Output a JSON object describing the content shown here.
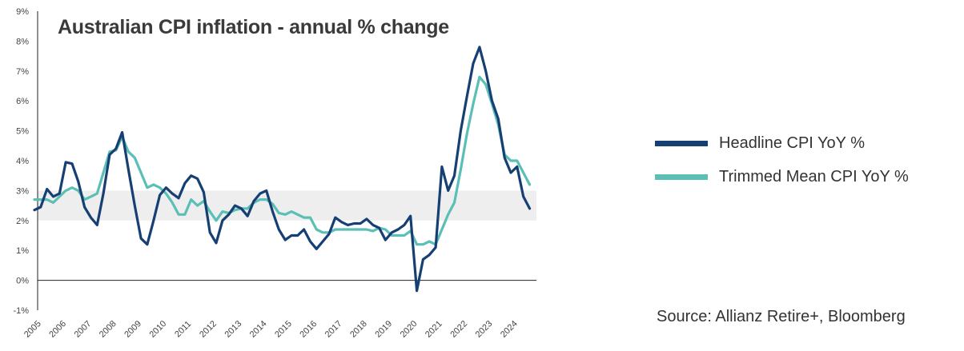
{
  "title": "Australian CPI inflation - annual % change",
  "source": "Source: Allianz Retire+, Bloomberg",
  "colors": {
    "headline": "#163f73",
    "trimmed": "#5bbfb6",
    "band": "#eeeeee",
    "axis": "#222222"
  },
  "chart_data": {
    "type": "line",
    "ylim": [
      -1,
      9
    ],
    "yticks": [
      "-1%",
      "0%",
      "1%",
      "2%",
      "3%",
      "4%",
      "5%",
      "6%",
      "7%",
      "8%",
      "9%"
    ],
    "ytick_values": [
      -1,
      0,
      1,
      2,
      3,
      4,
      5,
      6,
      7,
      8,
      9
    ],
    "xticks": [
      "2005",
      "2006",
      "2007",
      "2008",
      "2009",
      "2010",
      "2011",
      "2012",
      "2013",
      "2014",
      "2015",
      "2016",
      "2017",
      "2018",
      "2019",
      "2020",
      "2021",
      "2022",
      "2023",
      "2024"
    ],
    "target_band": [
      2,
      3
    ],
    "x_start": 2005.0,
    "x_step": 0.25,
    "series": [
      {
        "name": "Headline CPI YoY %",
        "values": [
          2.35,
          2.45,
          3.05,
          2.8,
          2.9,
          3.95,
          3.9,
          3.3,
          2.45,
          2.1,
          1.85,
          2.9,
          4.2,
          4.4,
          4.95,
          3.7,
          2.5,
          1.4,
          1.2,
          2.0,
          2.85,
          3.1,
          2.9,
          2.75,
          3.25,
          3.5,
          3.4,
          2.95,
          1.6,
          1.25,
          2.0,
          2.2,
          2.5,
          2.4,
          2.15,
          2.65,
          2.9,
          3.0,
          2.3,
          1.7,
          1.35,
          1.5,
          1.5,
          1.7,
          1.3,
          1.05,
          1.3,
          1.55,
          2.1,
          1.95,
          1.85,
          1.9,
          1.9,
          2.05,
          1.85,
          1.75,
          1.35,
          1.6,
          1.7,
          1.85,
          2.15,
          -0.35,
          0.7,
          0.85,
          1.1,
          3.8,
          3.0,
          3.5,
          5.0,
          6.15,
          7.25,
          7.8,
          7.0,
          6.0,
          5.4,
          4.1,
          3.6,
          3.8,
          2.8,
          2.4
        ]
      },
      {
        "name": "Trimmed Mean CPI YoY %",
        "values": [
          2.7,
          2.7,
          2.7,
          2.6,
          2.8,
          3.0,
          3.1,
          3.0,
          2.7,
          2.8,
          2.9,
          3.6,
          4.3,
          4.35,
          4.8,
          4.3,
          4.1,
          3.6,
          3.1,
          3.2,
          3.1,
          2.9,
          2.6,
          2.2,
          2.2,
          2.7,
          2.5,
          2.65,
          2.3,
          2.0,
          2.3,
          2.25,
          2.35,
          2.4,
          2.4,
          2.6,
          2.7,
          2.7,
          2.55,
          2.25,
          2.2,
          2.3,
          2.2,
          2.1,
          2.1,
          1.7,
          1.6,
          1.6,
          1.7,
          1.7,
          1.7,
          1.7,
          1.7,
          1.7,
          1.65,
          1.75,
          1.7,
          1.5,
          1.5,
          1.5,
          1.65,
          1.2,
          1.2,
          1.3,
          1.2,
          1.7,
          2.2,
          2.6,
          3.7,
          4.9,
          5.9,
          6.8,
          6.55,
          5.9,
          5.2,
          4.2,
          4.0,
          4.0,
          3.6,
          3.2
        ]
      }
    ]
  }
}
